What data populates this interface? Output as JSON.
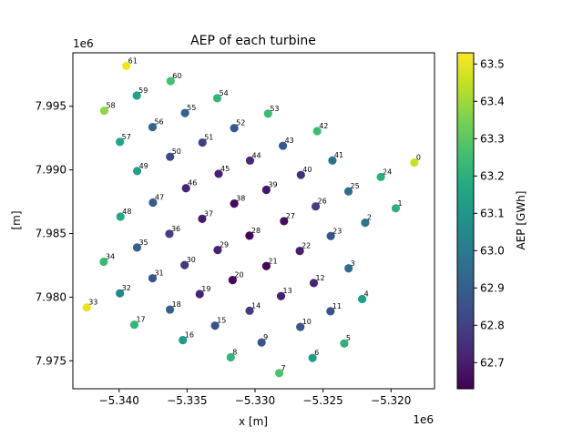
{
  "chart_data": {
    "type": "scatter",
    "title": "AEP of each turbine",
    "xlabel": "x [m]",
    "ylabel": "[m]",
    "x_offset_label": "1e6",
    "y_offset_label": "1e6",
    "xlim": [
      -5.3434,
      -5.3168
    ],
    "ylim": [
      7.9728,
      7.9992
    ],
    "xticks": [
      -5.34,
      -5.335,
      -5.33,
      -5.325,
      -5.32
    ],
    "yticks": [
      7.975,
      7.98,
      7.985,
      7.99,
      7.995
    ],
    "xtick_labels": [
      "−5.340",
      "−5.335",
      "−5.330",
      "−5.325",
      "−5.320"
    ],
    "ytick_labels": [
      "7.975",
      "7.980",
      "7.985",
      "7.990",
      "7.995"
    ],
    "colorbar": {
      "label": "AEP [GWh]",
      "min": 62.63,
      "max": 63.53,
      "colormap": "viridis",
      "ticks": [
        62.7,
        62.8,
        62.9,
        63.0,
        63.1,
        63.2,
        63.3,
        63.4,
        63.5
      ],
      "tick_labels": [
        "62.7",
        "62.8",
        "62.9",
        "63.0",
        "63.1",
        "63.2",
        "63.3",
        "63.4",
        "63.5"
      ]
    },
    "grid": false,
    "points": [
      {
        "id": "0",
        "x": -5.31828,
        "y": 7.99058,
        "v": 63.46
      },
      {
        "id": "1",
        "x": -5.31965,
        "y": 7.98698,
        "v": 63.2
      },
      {
        "id": "2",
        "x": -5.3219,
        "y": 7.98585,
        "v": 62.98
      },
      {
        "id": "3",
        "x": -5.32312,
        "y": 7.98226,
        "v": 62.95
      },
      {
        "id": "4",
        "x": -5.32212,
        "y": 7.97985,
        "v": 63.14
      },
      {
        "id": "5",
        "x": -5.32344,
        "y": 7.97636,
        "v": 63.2
      },
      {
        "id": "6",
        "x": -5.32577,
        "y": 7.97522,
        "v": 63.12
      },
      {
        "id": "7",
        "x": -5.32822,
        "y": 7.97403,
        "v": 63.27
      },
      {
        "id": "8",
        "x": -5.33179,
        "y": 7.97527,
        "v": 63.22
      },
      {
        "id": "9",
        "x": -5.32952,
        "y": 7.97644,
        "v": 62.86
      },
      {
        "id": "10",
        "x": -5.32667,
        "y": 7.97766,
        "v": 62.86
      },
      {
        "id": "11",
        "x": -5.32445,
        "y": 7.97889,
        "v": 62.86
      },
      {
        "id": "12",
        "x": -5.32568,
        "y": 7.98111,
        "v": 62.72
      },
      {
        "id": "13",
        "x": -5.32809,
        "y": 7.98008,
        "v": 62.71
      },
      {
        "id": "14",
        "x": -5.3304,
        "y": 7.97893,
        "v": 62.78
      },
      {
        "id": "15",
        "x": -5.33294,
        "y": 7.97776,
        "v": 62.86
      },
      {
        "id": "16",
        "x": -5.33531,
        "y": 7.97662,
        "v": 63.12
      },
      {
        "id": "17",
        "x": -5.33888,
        "y": 7.97783,
        "v": 63.22
      },
      {
        "id": "18",
        "x": -5.33626,
        "y": 7.97902,
        "v": 62.9
      },
      {
        "id": "19",
        "x": -5.33407,
        "y": 7.98024,
        "v": 62.72
      },
      {
        "id": "20",
        "x": -5.33165,
        "y": 7.98134,
        "v": 62.65
      },
      {
        "id": "21",
        "x": -5.32917,
        "y": 7.98244,
        "v": 62.64
      },
      {
        "id": "22",
        "x": -5.32671,
        "y": 7.98363,
        "v": 62.71
      },
      {
        "id": "23",
        "x": -5.32443,
        "y": 7.9848,
        "v": 62.87
      },
      {
        "id": "24",
        "x": -5.32075,
        "y": 7.98944,
        "v": 63.2
      },
      {
        "id": "25",
        "x": -5.32313,
        "y": 7.98831,
        "v": 62.95
      },
      {
        "id": "26",
        "x": -5.32554,
        "y": 7.98713,
        "v": 62.79
      },
      {
        "id": "27",
        "x": -5.32787,
        "y": 7.98597,
        "v": 62.66
      },
      {
        "id": "28",
        "x": -5.33041,
        "y": 7.98483,
        "v": 62.64
      },
      {
        "id": "29",
        "x": -5.33275,
        "y": 7.9837,
        "v": 62.72
      },
      {
        "id": "30",
        "x": -5.33518,
        "y": 7.98252,
        "v": 62.78
      },
      {
        "id": "31",
        "x": -5.33754,
        "y": 7.98148,
        "v": 62.87
      },
      {
        "id": "32",
        "x": -5.33994,
        "y": 7.9803,
        "v": 63.04
      },
      {
        "id": "33",
        "x": -5.34238,
        "y": 7.97919,
        "v": 63.5
      },
      {
        "id": "34",
        "x": -5.34113,
        "y": 7.98278,
        "v": 63.24
      },
      {
        "id": "35",
        "x": -5.33868,
        "y": 7.9839,
        "v": 62.91
      },
      {
        "id": "36",
        "x": -5.3363,
        "y": 7.98497,
        "v": 62.8
      },
      {
        "id": "37",
        "x": -5.33389,
        "y": 7.98615,
        "v": 62.7
      },
      {
        "id": "38",
        "x": -5.33153,
        "y": 7.98735,
        "v": 62.65
      },
      {
        "id": "39",
        "x": -5.32917,
        "y": 7.98843,
        "v": 62.68
      },
      {
        "id": "40",
        "x": -5.32663,
        "y": 7.9896,
        "v": 62.76
      },
      {
        "id": "41",
        "x": -5.32431,
        "y": 7.99074,
        "v": 62.97
      },
      {
        "id": "42",
        "x": -5.32543,
        "y": 7.99305,
        "v": 63.24
      },
      {
        "id": "43",
        "x": -5.32795,
        "y": 7.99189,
        "v": 62.88
      },
      {
        "id": "44",
        "x": -5.33037,
        "y": 7.99073,
        "v": 62.74
      },
      {
        "id": "45",
        "x": -5.33268,
        "y": 7.98969,
        "v": 62.71
      },
      {
        "id": "46",
        "x": -5.33508,
        "y": 7.98856,
        "v": 62.72
      },
      {
        "id": "47",
        "x": -5.33751,
        "y": 7.98743,
        "v": 62.89
      },
      {
        "id": "48",
        "x": -5.3399,
        "y": 7.98632,
        "v": 63.17
      },
      {
        "id": "49",
        "x": -5.33867,
        "y": 7.98991,
        "v": 63.14
      },
      {
        "id": "50",
        "x": -5.33625,
        "y": 7.99103,
        "v": 62.83
      },
      {
        "id": "51",
        "x": -5.33387,
        "y": 7.99215,
        "v": 62.8
      },
      {
        "id": "52",
        "x": -5.33153,
        "y": 7.99328,
        "v": 62.88
      },
      {
        "id": "53",
        "x": -5.32904,
        "y": 7.99442,
        "v": 63.24
      },
      {
        "id": "54",
        "x": -5.33278,
        "y": 7.99563,
        "v": 63.22
      },
      {
        "id": "55",
        "x": -5.33515,
        "y": 7.99447,
        "v": 62.9
      },
      {
        "id": "56",
        "x": -5.33754,
        "y": 7.99336,
        "v": 62.92
      },
      {
        "id": "57",
        "x": -5.33994,
        "y": 7.9922,
        "v": 63.16
      },
      {
        "id": "58",
        "x": -5.34109,
        "y": 7.99465,
        "v": 63.38
      },
      {
        "id": "59",
        "x": -5.3387,
        "y": 7.99584,
        "v": 63.15
      },
      {
        "id": "60",
        "x": -5.33621,
        "y": 7.99698,
        "v": 63.26
      },
      {
        "id": "61",
        "x": -5.33947,
        "y": 7.99817,
        "v": 63.51
      }
    ]
  }
}
